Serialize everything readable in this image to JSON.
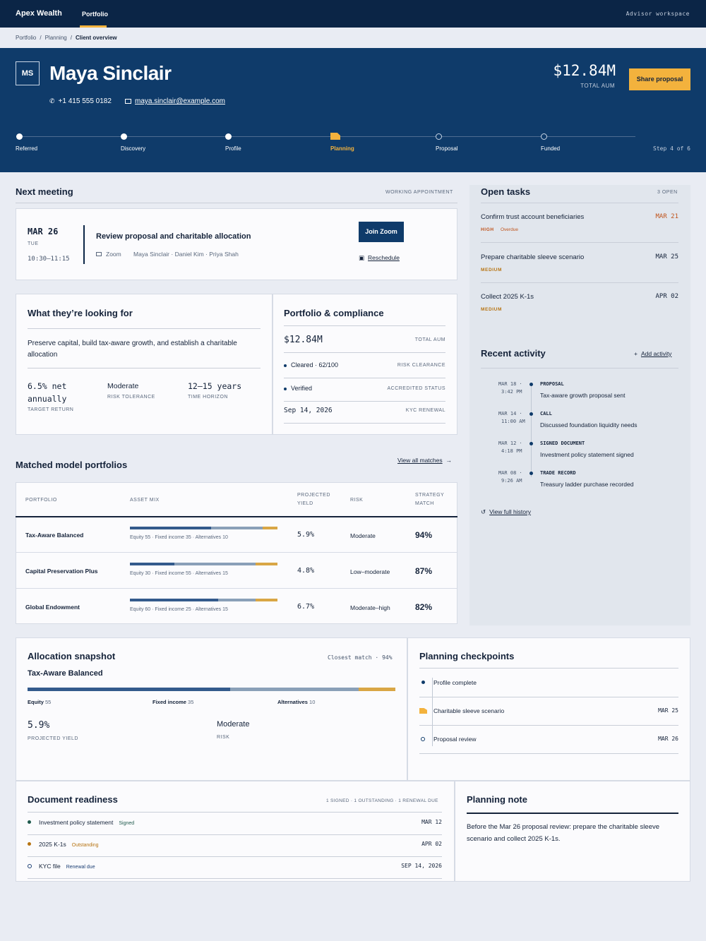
{
  "topbar": {
    "brand": "Apex Wealth",
    "tab": "Portfolio",
    "workspace": "Advisor workspace"
  },
  "breadcrumb": [
    "Portfolio",
    "Planning",
    "Client overview"
  ],
  "client": {
    "initials": "MS",
    "name": "Maya Sinclair",
    "phone": "+1 415 555 0182",
    "email": "maya.sinclair@example.com",
    "aum": "$12.84M",
    "aum_label": "TOTAL AUM",
    "share_label": "Share proposal"
  },
  "steps": {
    "items": [
      "Referred",
      "Discovery",
      "Profile",
      "Planning",
      "Proposal",
      "Funded"
    ],
    "current": 3,
    "count_label": "Step 4 of 6"
  },
  "meeting": {
    "heading": "Next meeting",
    "tag": "WORKING APPOINTMENT",
    "date": "MAR 26",
    "day": "TUE",
    "time": "10:30–11:15",
    "title": "Review proposal and charitable allocation",
    "channel": "Zoom",
    "attendees": "Maya Sinclair · Daniel Kim · Priya Shah",
    "join_label": "Join Zoom",
    "reschedule_label": "Reschedule"
  },
  "goals": {
    "heading": "What they’re looking for",
    "summary": "Preserve capital, build tax-aware growth, and establish a charitable allocation",
    "metrics": [
      {
        "value": "6.5% net annually",
        "label": "TARGET RETURN"
      },
      {
        "value": "Moderate",
        "label": "RISK TOLERANCE"
      },
      {
        "value": "12–15 years",
        "label": "TIME HORIZON"
      }
    ]
  },
  "compliance": {
    "heading": "Portfolio & compliance",
    "rows": [
      {
        "value": "$12.84M",
        "label": "TOTAL AUM"
      },
      {
        "value": "Cleared · 62/100",
        "label": "RISK CLEARANCE"
      },
      {
        "value": "Verified",
        "label": "ACCREDITED STATUS"
      },
      {
        "value": "Sep 14, 2026",
        "label": "KYC RENEWAL"
      }
    ]
  },
  "models": {
    "heading": "Matched model portfolios",
    "view_all": "View all matches",
    "columns": [
      "PORTFOLIO",
      "ASSET MIX",
      "PROJECTED YIELD",
      "RISK",
      "STRATEGY MATCH"
    ],
    "rows": [
      {
        "name": "Tax-Aware Balanced",
        "mix": "Equity 55 · Fixed income 35 · Alternatives 10",
        "equity": 55,
        "fixed": 35,
        "alt": 10,
        "yield": "5.9%",
        "risk": "Moderate",
        "match": "94%"
      },
      {
        "name": "Capital Preservation Plus",
        "mix": "Equity 30 · Fixed income 55 · Alternatives 15",
        "equity": 30,
        "fixed": 55,
        "alt": 15,
        "yield": "4.8%",
        "risk": "Low–moderate",
        "match": "87%"
      },
      {
        "name": "Global Endowment",
        "mix": "Equity 60 · Fixed income 25 · Alternatives 15",
        "equity": 60,
        "fixed": 25,
        "alt": 15,
        "yield": "6.7%",
        "risk": "Moderate–high",
        "match": "82%"
      }
    ]
  },
  "tasks": {
    "heading": "Open tasks",
    "count": "3 OPEN",
    "items": [
      {
        "title": "Confirm trust account beneficiaries",
        "date": "MAR 21",
        "priority": "HIGH",
        "status": "Overdue"
      },
      {
        "title": "Prepare charitable sleeve scenario",
        "date": "MAR 25",
        "priority": "MEDIUM",
        "status": ""
      },
      {
        "title": "Collect 2025 K-1s",
        "date": "APR 02",
        "priority": "MEDIUM",
        "status": ""
      }
    ]
  },
  "activity": {
    "heading": "Recent activity",
    "add_label": "Add activity",
    "history_label": "View full history",
    "items": [
      {
        "date": "MAR 18 ·",
        "time": "3:42 PM",
        "type": "PROPOSAL",
        "text": "Tax-aware growth proposal sent"
      },
      {
        "date": "MAR 14 ·",
        "time": "11:00 AM",
        "type": "CALL",
        "text": "Discussed foundation liquidity needs"
      },
      {
        "date": "MAR 12 ·",
        "time": "4:18 PM",
        "type": "SIGNED DOCUMENT",
        "text": "Investment policy statement signed"
      },
      {
        "date": "MAR 08 ·",
        "time": "9:26 AM",
        "type": "TRADE RECORD",
        "text": "Treasury ladder purchase recorded"
      }
    ]
  },
  "allocation": {
    "heading": "Allocation snapshot",
    "match": "Closest match · 94%",
    "portfolio": "Tax-Aware Balanced",
    "equity": 55,
    "fixed": 35,
    "alt": 10,
    "labels": [
      {
        "name": "Equity",
        "value": "55"
      },
      {
        "name": "Fixed income",
        "value": "35"
      },
      {
        "name": "Alternatives",
        "value": "10"
      }
    ],
    "yield": "5.9%",
    "yield_label": "PROJECTED YIELD",
    "risk": "Moderate",
    "risk_label": "RISK"
  },
  "checkpoints": {
    "heading": "Planning checkpoints",
    "items": [
      {
        "label": "Profile complete",
        "date": ""
      },
      {
        "label": "Charitable sleeve scenario",
        "date": "MAR 25"
      },
      {
        "label": "Proposal review",
        "date": "MAR 26"
      }
    ]
  },
  "documents": {
    "heading": "Document readiness",
    "summary": "1 SIGNED · 1 OUTSTANDING · 1 RENEWAL DUE",
    "items": [
      {
        "name": "Investment policy statement",
        "status": "Signed",
        "date": "MAR 12",
        "color": "#1f5a4d"
      },
      {
        "name": "2025 K-1s",
        "status": "Outstanding",
        "date": "APR 02",
        "color": "#b77412"
      },
      {
        "name": "KYC file",
        "status": "Renewal due",
        "date": "SEP 14, 2026",
        "color": "#1c3f74"
      }
    ]
  },
  "note": {
    "heading": "Planning note",
    "text": "Before the Mar 26 proposal review: prepare the charitable sleeve scenario and collect 2025 K-1s."
  }
}
